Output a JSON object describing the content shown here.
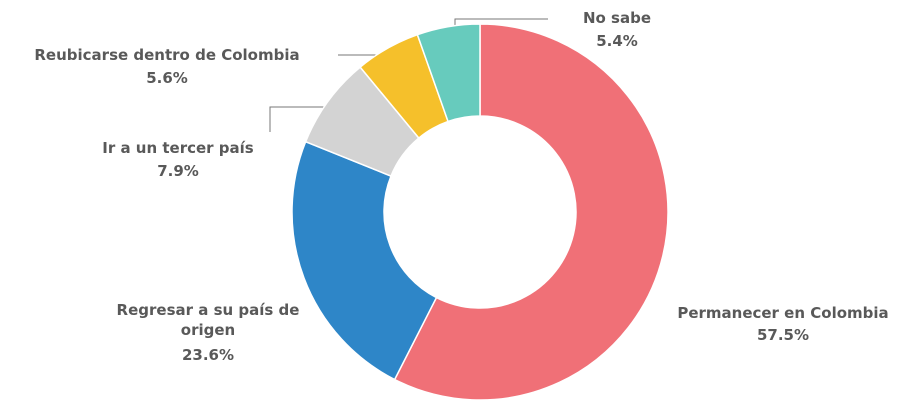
{
  "chart_data": {
    "type": "donut",
    "categories": [
      "Permanecer en Colombia",
      "Regresar a su país de origen",
      "Ir a un tercer país",
      "Reubicarse dentro de Colombia",
      "No sabe"
    ],
    "values": [
      57.5,
      23.6,
      7.9,
      5.6,
      5.4
    ],
    "value_labels": [
      "57.5%",
      "23.6%",
      "7.9%",
      "5.6%",
      "5.4%"
    ],
    "colors": [
      "#f07077",
      "#2e86c8",
      "#d3d3d3",
      "#f5c02b",
      "#67cbbd"
    ]
  }
}
